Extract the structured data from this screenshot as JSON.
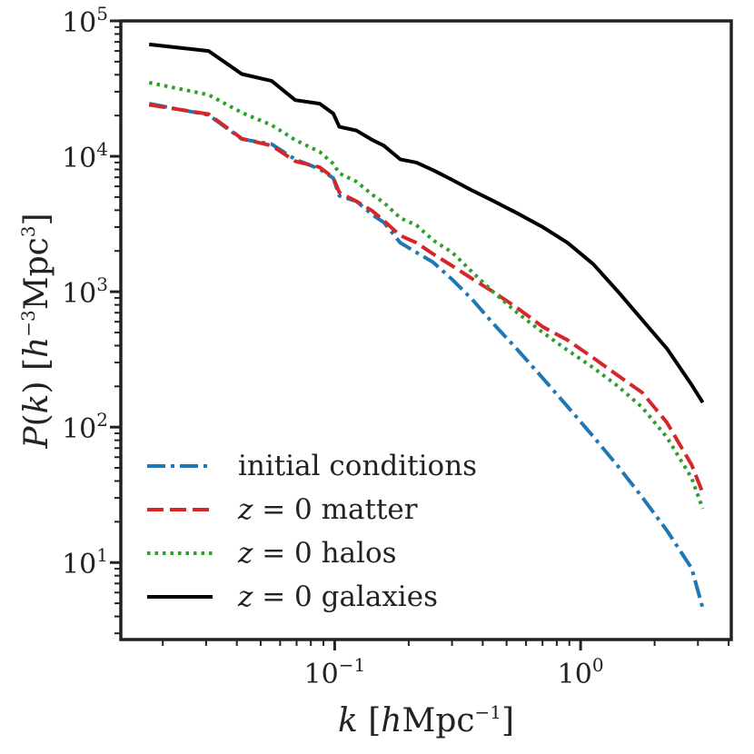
{
  "chart_data": {
    "type": "line",
    "xscale": "log",
    "yscale": "log",
    "xlim": [
      0.0135,
      4.1
    ],
    "ylim": [
      2.7,
      100000
    ],
    "xlabel": "k [hMpc^-1]",
    "ylabel": "P(k) [h^-3Mpc^3]",
    "legend_position": "lower-left",
    "grid": false,
    "x_ticks": [
      {
        "value": 0.1,
        "base": "10",
        "exp": "−1"
      },
      {
        "value": 1,
        "base": "10",
        "exp": "0"
      }
    ],
    "y_ticks": [
      {
        "value": 10,
        "base": "10",
        "exp": "1"
      },
      {
        "value": 100,
        "base": "10",
        "exp": "2"
      },
      {
        "value": 1000,
        "base": "10",
        "exp": "3"
      },
      {
        "value": 10000,
        "base": "10",
        "exp": "4"
      },
      {
        "value": 100000,
        "base": "10",
        "exp": "5"
      }
    ],
    "series": [
      {
        "name": "initial conditions",
        "color": "#1f77b4",
        "style": "dashdot",
        "points": [
          [
            0.0176,
            24500
          ],
          [
            0.0307,
            20200
          ],
          [
            0.0419,
            13400
          ],
          [
            0.0554,
            12300
          ],
          [
            0.0691,
            9500
          ],
          [
            0.0869,
            8050
          ],
          [
            0.0987,
            6900
          ],
          [
            0.1044,
            5100
          ],
          [
            0.1226,
            4650
          ],
          [
            0.1423,
            3700
          ],
          [
            0.1584,
            3250
          ],
          [
            0.1848,
            2300
          ],
          [
            0.2149,
            1950
          ],
          [
            0.2513,
            1650
          ],
          [
            0.3006,
            1230
          ],
          [
            0.3618,
            880
          ],
          [
            0.4399,
            585
          ],
          [
            0.5522,
            375
          ],
          [
            0.7018,
            230
          ],
          [
            0.8844,
            142
          ],
          [
            1.1256,
            85.2
          ],
          [
            1.4207,
            51.3
          ],
          [
            1.7792,
            30.4
          ],
          [
            2.2443,
            17.2
          ],
          [
            2.8291,
            9.05
          ],
          [
            3.1377,
            4.6
          ]
        ]
      },
      {
        "name": "z = 0 matter",
        "color": "#d62728",
        "style": "dashed",
        "points": [
          [
            0.0176,
            24000
          ],
          [
            0.0307,
            20500
          ],
          [
            0.0419,
            13500
          ],
          [
            0.0554,
            12000
          ],
          [
            0.0691,
            9200
          ],
          [
            0.0869,
            8300
          ],
          [
            0.0987,
            6950
          ],
          [
            0.1044,
            5400
          ],
          [
            0.1226,
            4650
          ],
          [
            0.1423,
            3950
          ],
          [
            0.1584,
            3350
          ],
          [
            0.1848,
            2600
          ],
          [
            0.2149,
            2300
          ],
          [
            0.2513,
            1900
          ],
          [
            0.3006,
            1550
          ],
          [
            0.3618,
            1250
          ],
          [
            0.4399,
            1000
          ],
          [
            0.5522,
            760
          ],
          [
            0.7018,
            550
          ],
          [
            0.8844,
            440
          ],
          [
            1.1256,
            325
          ],
          [
            1.4207,
            240
          ],
          [
            1.7792,
            180
          ],
          [
            2.2443,
            108
          ],
          [
            2.8291,
            52.6
          ],
          [
            3.1377,
            32.6
          ]
        ]
      },
      {
        "name": "z = 0 halos",
        "color": "#2ca02c",
        "style": "dotted",
        "points": [
          [
            0.0176,
            35000
          ],
          [
            0.0307,
            28500
          ],
          [
            0.0419,
            21000
          ],
          [
            0.0554,
            17000
          ],
          [
            0.0691,
            13200
          ],
          [
            0.0869,
            10800
          ],
          [
            0.0987,
            8800
          ],
          [
            0.1044,
            7500
          ],
          [
            0.1226,
            6500
          ],
          [
            0.1423,
            5200
          ],
          [
            0.1584,
            4550
          ],
          [
            0.1848,
            3500
          ],
          [
            0.2149,
            3100
          ],
          [
            0.2513,
            2400
          ],
          [
            0.3006,
            1950
          ],
          [
            0.3618,
            1400
          ],
          [
            0.4399,
            1000
          ],
          [
            0.5522,
            700
          ],
          [
            0.7018,
            500
          ],
          [
            0.8844,
            370
          ],
          [
            1.1256,
            275
          ],
          [
            1.4207,
            200
          ],
          [
            1.7792,
            140
          ],
          [
            2.2443,
            84
          ],
          [
            2.8291,
            42
          ],
          [
            3.1377,
            25
          ]
        ]
      },
      {
        "name": "z = 0 galaxies",
        "color": "#000000",
        "style": "solid",
        "points": [
          [
            0.0176,
            67000
          ],
          [
            0.0307,
            60000
          ],
          [
            0.0419,
            40500
          ],
          [
            0.0554,
            36000
          ],
          [
            0.0691,
            26000
          ],
          [
            0.0869,
            24500
          ],
          [
            0.0987,
            20700
          ],
          [
            0.1044,
            16500
          ],
          [
            0.1226,
            15500
          ],
          [
            0.1423,
            13200
          ],
          [
            0.1584,
            12000
          ],
          [
            0.1848,
            9500
          ],
          [
            0.2149,
            9000
          ],
          [
            0.2513,
            7900
          ],
          [
            0.3006,
            6700
          ],
          [
            0.3618,
            5600
          ],
          [
            0.4399,
            4700
          ],
          [
            0.5522,
            3800
          ],
          [
            0.7018,
            3000
          ],
          [
            0.8844,
            2300
          ],
          [
            1.1256,
            1600
          ],
          [
            1.4207,
            1000
          ],
          [
            1.7792,
            620
          ],
          [
            2.2443,
            380
          ],
          [
            2.8291,
            205
          ],
          [
            3.1377,
            152
          ]
        ]
      }
    ]
  }
}
